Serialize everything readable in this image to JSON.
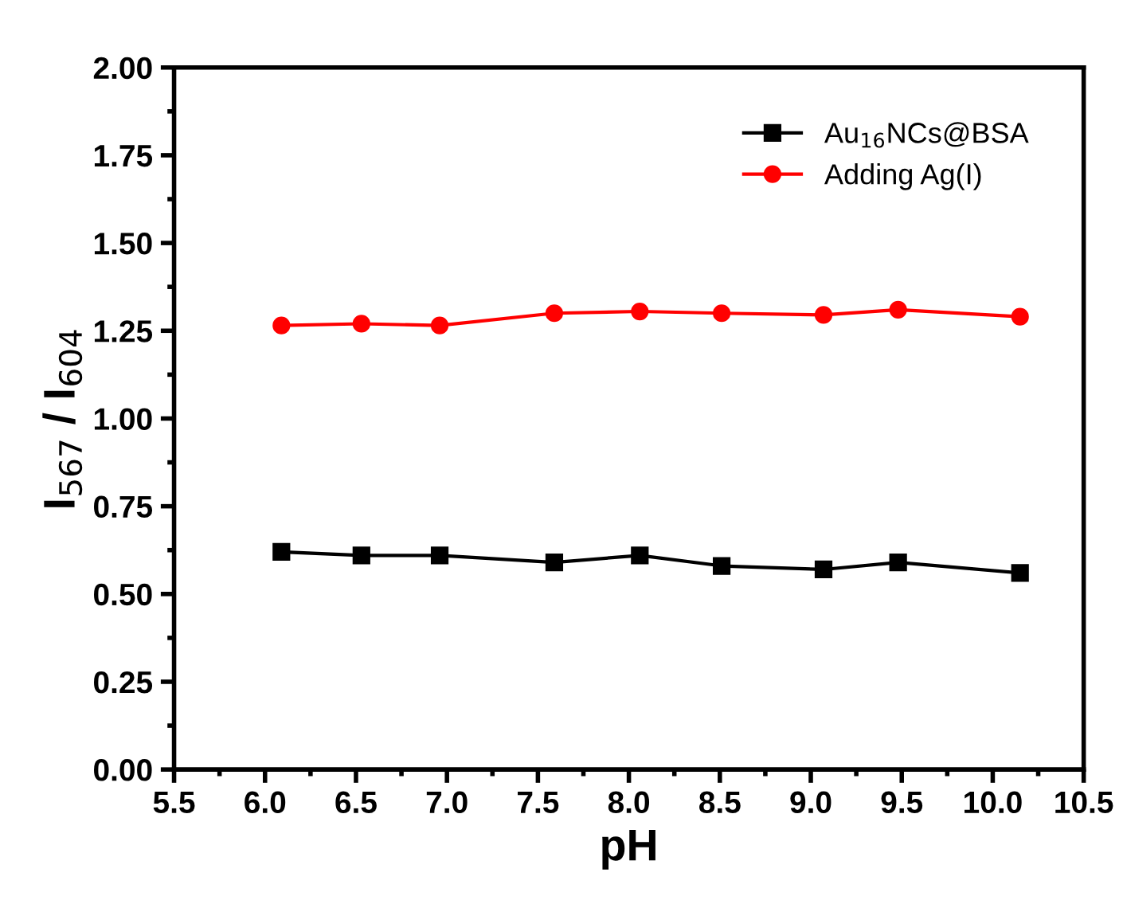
{
  "chart_data": {
    "type": "line",
    "xlabel": "pH",
    "ylabel": "I$_{567}$ / I$_{604}$",
    "x": [
      6.09,
      6.53,
      6.96,
      7.59,
      8.06,
      8.51,
      9.07,
      9.48,
      10.15
    ],
    "series": [
      {
        "name": "Au$_{16}$NCs@BSA",
        "color": "#000000",
        "marker": "square",
        "values": [
          0.62,
          0.61,
          0.61,
          0.59,
          0.61,
          0.58,
          0.57,
          0.59,
          0.56
        ]
      },
      {
        "name": "Adding Ag(I)",
        "color": "#ff0000",
        "marker": "circle",
        "values": [
          1.265,
          1.27,
          1.265,
          1.3,
          1.305,
          1.3,
          1.295,
          1.31,
          1.29
        ]
      }
    ],
    "xlim": [
      5.5,
      10.5
    ],
    "xticks": [
      5.5,
      {
        "value": 6,
        "label": "6.0"
      },
      6.5,
      {
        "value": 7,
        "label": "7.0"
      },
      7.5,
      {
        "value": 8,
        "label": "8.0"
      },
      8.5,
      {
        "value": 9,
        "label": "9.0"
      },
      9.5,
      {
        "value": 10,
        "label": "10.0"
      },
      10.5
    ],
    "ylim": [
      0,
      2
    ],
    "yticks": [
      {
        "value": 0,
        "label": "0.00"
      },
      {
        "value": 0.25,
        "label": "0.25"
      },
      {
        "value": 0.5,
        "label": "0.50"
      },
      {
        "value": 0.75,
        "label": "0.75"
      },
      {
        "value": 1,
        "label": "1.00"
      },
      {
        "value": 1.25,
        "label": "1.25"
      },
      {
        "value": 1.5,
        "label": "1.50"
      },
      {
        "value": 1.75,
        "label": "1.75"
      },
      {
        "value": 2,
        "label": "2.00"
      }
    ],
    "grid": false,
    "legend": "top right",
    "line_style": "solid"
  }
}
